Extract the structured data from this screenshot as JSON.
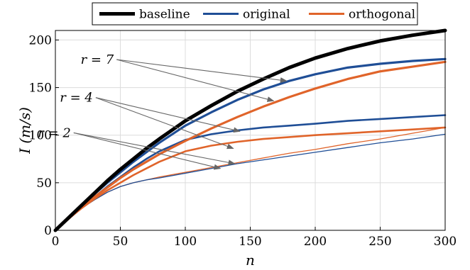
{
  "chart_data": {
    "type": "line",
    "xlabel": "n",
    "ylabel": "I (m/s)",
    "xlim": [
      0,
      300
    ],
    "ylim": [
      0,
      210
    ],
    "xticks": [
      0,
      50,
      100,
      150,
      200,
      250,
      300
    ],
    "yticks": [
      0,
      50,
      100,
      150,
      200
    ],
    "grid": true,
    "legend": {
      "position": "top-center",
      "orientation": "horizontal",
      "entries": [
        "baseline",
        "original",
        "orthogonal"
      ]
    },
    "colors": {
      "baseline": "#000000",
      "original": "#1f4e96",
      "orthogonal": "#e0642a",
      "arrow": "#666666",
      "grid": "#dcdcdc"
    },
    "x": [
      0,
      10,
      20,
      30,
      40,
      50,
      60,
      70,
      80,
      100,
      120,
      140,
      160,
      180,
      200,
      225,
      250,
      275,
      300
    ],
    "series": [
      {
        "name": "baseline",
        "r": null,
        "color": "#000000",
        "y": [
          0,
          13,
          26,
          39,
          52,
          64,
          75,
          86,
          96,
          115,
          131,
          146,
          159,
          171,
          181,
          191,
          199,
          205,
          210
        ]
      },
      {
        "name": "original",
        "r": 7,
        "color": "#1f4e96",
        "y": [
          0,
          13,
          26,
          38,
          50,
          61,
          72,
          82,
          92,
          110,
          124,
          137,
          148,
          157,
          164,
          171,
          175,
          178,
          180
        ]
      },
      {
        "name": "orthogonal",
        "r": 7,
        "color": "#e0642a",
        "y": [
          0,
          12,
          24,
          35,
          45,
          55,
          64,
          72,
          80,
          94,
          107,
          119,
          130,
          140,
          149,
          159,
          167,
          172,
          177
        ]
      },
      {
        "name": "original",
        "r": 4,
        "color": "#1f4e96",
        "y": [
          0,
          12,
          24,
          35,
          46,
          56,
          66,
          75,
          83,
          95,
          101,
          105,
          108,
          110,
          112,
          115,
          117,
          119,
          121
        ]
      },
      {
        "name": "orthogonal",
        "r": 4,
        "color": "#e0642a",
        "y": [
          0,
          12,
          23,
          33,
          42,
          50,
          58,
          65,
          72,
          83,
          89,
          93,
          96,
          98,
          100,
          102,
          104,
          106,
          108
        ]
      },
      {
        "name": "original",
        "r": 2,
        "color": "#1f4e96",
        "y": [
          0,
          12,
          23,
          32,
          40,
          46,
          50,
          53,
          55,
          60,
          65,
          70,
          74,
          78,
          82,
          87,
          92,
          96,
          101
        ]
      },
      {
        "name": "orthogonal",
        "r": 2,
        "color": "#e0642a",
        "y": [
          0,
          12,
          23,
          32,
          40,
          46,
          50,
          53,
          56,
          61,
          66,
          71,
          76,
          81,
          85,
          91,
          96,
          102,
          108
        ]
      }
    ],
    "annotations": [
      {
        "label": "r = 7",
        "point_label": [
          46,
          175
        ],
        "targets": [
          [
            178,
            157
          ],
          [
            168,
            136
          ]
        ]
      },
      {
        "label": "r = 4",
        "point_label": [
          30,
          135
        ],
        "targets": [
          [
            142,
            104
          ],
          [
            137,
            86
          ]
        ]
      },
      {
        "label": "r = 2",
        "point_label": [
          13,
          98
        ],
        "targets": [
          [
            127,
            65
          ],
          [
            138,
            70
          ]
        ]
      }
    ]
  }
}
